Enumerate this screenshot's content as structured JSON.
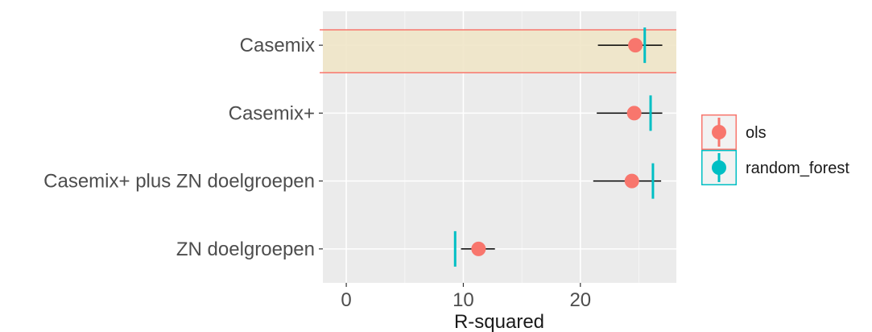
{
  "chart_data": {
    "type": "scatter",
    "subtype": "dot-and-whisker",
    "title": "",
    "xlabel": "R-squared",
    "ylabel": "",
    "xlim": [
      -2,
      28.2
    ],
    "x_ticks": [
      0,
      10,
      20
    ],
    "x_tick_labels": [
      "0",
      "10",
      "20"
    ],
    "grid": true,
    "legend_position": "right",
    "categories": [
      "Casemix",
      "Casemix+",
      "Casemix+ plus ZN doelgroepen",
      "ZN doelgroepen"
    ],
    "highlighted_category": "Casemix",
    "series": [
      {
        "name": "ols",
        "color": "#F8766D",
        "marker": "point",
        "values": [
          24.7,
          24.6,
          24.4,
          11.3
        ],
        "ci_low": [
          21.5,
          21.4,
          21.1,
          9.8
        ],
        "ci_high": [
          27.0,
          27.0,
          26.9,
          12.7
        ]
      },
      {
        "name": "random_forest",
        "color": "#00BFC4",
        "marker": "vline",
        "values": [
          25.5,
          26.0,
          26.2,
          9.3
        ]
      }
    ],
    "highlight_fill": "#f0e6c8",
    "highlight_stroke": "#F8766D",
    "panel_background": "#ebebeb",
    "errorbar_color": "#000000"
  }
}
